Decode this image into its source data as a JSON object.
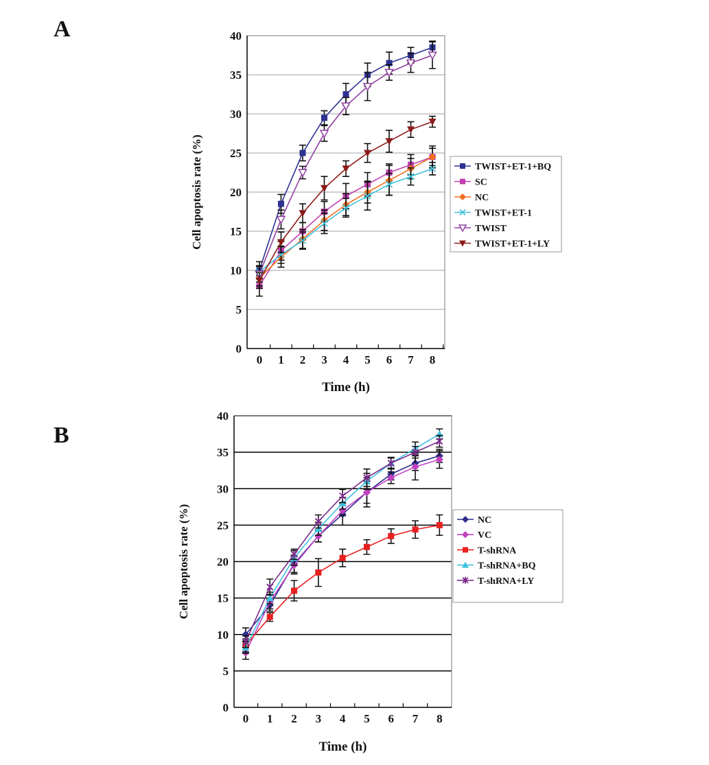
{
  "chart_data": [
    {
      "panel_label": "A",
      "type": "line",
      "title": "",
      "xlabel": "Time (h)",
      "ylabel": "Cell apoptosis rate (%)",
      "x": [
        0,
        1,
        2,
        3,
        4,
        5,
        6,
        7,
        8
      ],
      "xticks": [
        "0",
        "1",
        "2",
        "3",
        "4",
        "5",
        "6",
        "7",
        "8"
      ],
      "yticks": [
        "0",
        "5",
        "10",
        "15",
        "20",
        "25",
        "30",
        "35",
        "40"
      ],
      "ylim": [
        0,
        40
      ],
      "grid": "horizontal",
      "grid_color": "#a0a0a0",
      "legend_position": "right",
      "series": [
        {
          "name": "TWIST+ET-1+BQ",
          "color": "#2e3192",
          "marker": "square",
          "values": [
            10,
            18.5,
            25,
            29.5,
            32.5,
            35,
            36.5,
            37.5,
            38.5
          ],
          "error": [
            1.1,
            1.2,
            1,
            0.9,
            1.4,
            1.5,
            1.4,
            1,
            0.8
          ]
        },
        {
          "name": "SC",
          "color": "#c040b0",
          "marker": "square",
          "values": [
            8,
            12.5,
            15,
            17.5,
            19.5,
            21,
            22.5,
            23.5,
            24.5
          ],
          "error": [
            1.3,
            1.2,
            1.1,
            1.3,
            1.6,
            1.5,
            1.1,
            1.3,
            1.4
          ]
        },
        {
          "name": "NC",
          "color": "#f07020",
          "marker": "diamond",
          "values": [
            9,
            11.7,
            14,
            16.4,
            18.4,
            20,
            21.5,
            23,
            24.5
          ],
          "error": [
            1,
            1.3,
            1.2,
            1.3,
            1.4,
            1.4,
            1.9,
            1.3,
            1.1
          ]
        },
        {
          "name": "TWIST+ET-1",
          "color": "#40c0d8",
          "marker": "x",
          "values": [
            9.8,
            12,
            13.8,
            16,
            18,
            19.5,
            21,
            22,
            23
          ],
          "error": [
            0.8,
            1.1,
            1.1,
            1.3,
            1.2,
            1.8,
            1.4,
            1.1,
            0.8
          ]
        },
        {
          "name": "TWIST",
          "color": "#9040a0",
          "marker": "triangle-down-open",
          "values": [
            9.5,
            16.5,
            22.5,
            27.5,
            31,
            33.5,
            35.3,
            36.5,
            37.5
          ],
          "error": [
            1,
            1.2,
            0.8,
            1,
            1.1,
            1.8,
            1,
            1.2,
            1.7
          ]
        },
        {
          "name": "TWIST+ET-1+LY",
          "color": "#8b1a1a",
          "marker": "triangle-down",
          "values": [
            8.7,
            13.6,
            17.3,
            20.5,
            23,
            25,
            26.5,
            28,
            29
          ],
          "error": [
            1,
            1.3,
            1.2,
            1.5,
            1,
            1.2,
            1.4,
            1,
            0.7
          ]
        }
      ]
    },
    {
      "panel_label": "B",
      "type": "line",
      "title": "",
      "xlabel": "Time (h)",
      "ylabel": "Cell apoptosis rate (%)",
      "x": [
        0,
        1,
        2,
        3,
        4,
        5,
        6,
        7,
        8
      ],
      "xticks": [
        "0",
        "1",
        "2",
        "3",
        "4",
        "5",
        "6",
        "7",
        "8"
      ],
      "yticks": [
        "0",
        "5",
        "10",
        "15",
        "20",
        "25",
        "30",
        "35",
        "40"
      ],
      "ylim": [
        0,
        40
      ],
      "grid": "horizontal",
      "grid_color": "#000000",
      "legend_position": "right",
      "series": [
        {
          "name": "NC",
          "color": "#2e2e8e",
          "marker": "diamond",
          "values": [
            10,
            14,
            19.7,
            23.5,
            26.5,
            29.5,
            32,
            33.5,
            34.5
          ],
          "error": [
            0.9,
            0.8,
            1.2,
            0.8,
            1.5,
            1.5,
            0.8,
            1,
            0.9
          ]
        },
        {
          "name": "VC",
          "color": "#c040c0",
          "marker": "diamond",
          "values": [
            7.5,
            14.5,
            19.5,
            23.5,
            27,
            29.5,
            31.5,
            33,
            34
          ],
          "error": [
            0.9,
            1,
            1.2,
            0.8,
            0.7,
            2,
            0.8,
            1.8,
            1.2
          ]
        },
        {
          "name": "T-shRNA",
          "color": "#e82020",
          "marker": "square",
          "values": [
            8.5,
            12.4,
            16,
            18.5,
            20.5,
            22,
            23.5,
            24.4,
            25
          ],
          "error": [
            0.9,
            0.6,
            1.4,
            1.9,
            1.2,
            1,
            1,
            1.2,
            1.4
          ]
        },
        {
          "name": "T-shRNA+BQ",
          "color": "#40c0e0",
          "marker": "triangle-up",
          "values": [
            8.2,
            15,
            20.5,
            24.5,
            28,
            31,
            33.5,
            35.5,
            37.5
          ],
          "error": [
            0.8,
            0.8,
            1,
            0.9,
            0.8,
            1.1,
            0.7,
            0.9,
            0.7
          ]
        },
        {
          "name": "T-shRNA+LY",
          "color": "#7a2a8a",
          "marker": "star",
          "values": [
            9,
            16.5,
            21,
            25.5,
            29,
            31.5,
            33.5,
            35,
            36.5
          ],
          "error": [
            0.8,
            1.1,
            0.7,
            0.9,
            0.9,
            1.2,
            0.8,
            0.8,
            0.8
          ]
        }
      ]
    }
  ]
}
